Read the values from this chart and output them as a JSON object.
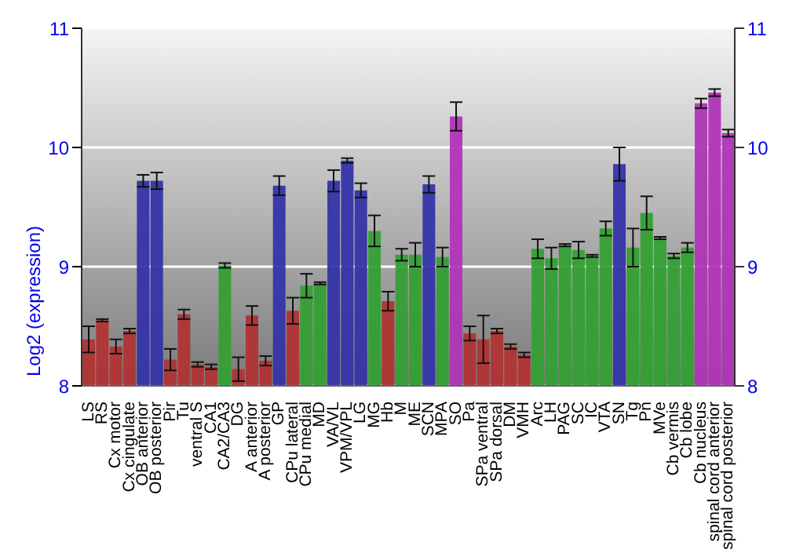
{
  "chart_data": {
    "type": "bar",
    "ylabel": "Log2 (expression)",
    "categories": [
      "LS",
      "RS",
      "Cx motor",
      "Cx cingulate",
      "OB anterior",
      "OB posterior",
      "Pir",
      "Tu",
      "ventral S",
      "CA1",
      "CA2/CA3",
      "DG",
      "A anterior",
      "A posterior",
      "GP",
      "CPu lateral",
      "CPu medial",
      "MD",
      "VA/VL",
      "VPM/VPL",
      "LG",
      "MG",
      "Hb",
      "M",
      "ME",
      "SCN",
      "MPA",
      "SO",
      "Pa",
      "SPa ventral",
      "SPa dorsal",
      "DM",
      "VMH",
      "Arc",
      "LH",
      "PAG",
      "SC",
      "IC",
      "VTA",
      "SN",
      "Tg",
      "Pn",
      "MVe",
      "Cb vermis",
      "Cb lobe",
      "Cb nucleus",
      "spinal cord anterior",
      "spinal cord posterior"
    ],
    "values": [
      8.39,
      8.55,
      8.33,
      8.46,
      9.72,
      9.72,
      8.22,
      8.6,
      8.18,
      8.16,
      9.01,
      8.14,
      8.59,
      8.21,
      9.68,
      8.63,
      8.84,
      8.86,
      9.72,
      9.89,
      9.64,
      9.3,
      8.71,
      9.1,
      9.1,
      9.69,
      9.08,
      10.26,
      8.44,
      8.39,
      8.46,
      8.33,
      8.26,
      9.15,
      9.07,
      9.18,
      9.14,
      9.09,
      9.32,
      9.86,
      9.16,
      9.45,
      9.24,
      9.09,
      9.16,
      10.37,
      10.46,
      10.12
    ],
    "errors": [
      0.11,
      0.01,
      0.06,
      0.02,
      0.05,
      0.07,
      0.09,
      0.04,
      0.02,
      0.02,
      0.02,
      0.1,
      0.08,
      0.04,
      0.08,
      0.11,
      0.1,
      0.01,
      0.09,
      0.02,
      0.06,
      0.13,
      0.08,
      0.05,
      0.1,
      0.07,
      0.08,
      0.12,
      0.06,
      0.2,
      0.02,
      0.02,
      0.02,
      0.08,
      0.09,
      0.01,
      0.07,
      0.01,
      0.06,
      0.14,
      0.16,
      0.14,
      0.01,
      0.02,
      0.04,
      0.04,
      0.03,
      0.03
    ],
    "colors": [
      "#b03434",
      "#b03434",
      "#b03434",
      "#b03434",
      "#3434a8",
      "#3434a8",
      "#b03434",
      "#b03434",
      "#b03434",
      "#b03434",
      "#34a034",
      "#b03434",
      "#b03434",
      "#b03434",
      "#3434a8",
      "#b03434",
      "#34a034",
      "#34a034",
      "#3434a8",
      "#3434a8",
      "#3434a8",
      "#34a034",
      "#b03434",
      "#34a034",
      "#34a034",
      "#3434a8",
      "#34a034",
      "#b034b8",
      "#b03434",
      "#b03434",
      "#b03434",
      "#b03434",
      "#b03434",
      "#34a034",
      "#34a034",
      "#34a034",
      "#34a034",
      "#34a034",
      "#34a034",
      "#3434a8",
      "#34a034",
      "#34a034",
      "#34a034",
      "#34a034",
      "#34a034",
      "#b034b8",
      "#b034b8",
      "#b034b8"
    ],
    "ylim": [
      8,
      11
    ],
    "yticks": [
      8,
      9,
      10,
      11
    ],
    "y2lim": [
      8,
      11
    ],
    "y2ticks": [
      8,
      9,
      10,
      11
    ],
    "grid": "y"
  }
}
